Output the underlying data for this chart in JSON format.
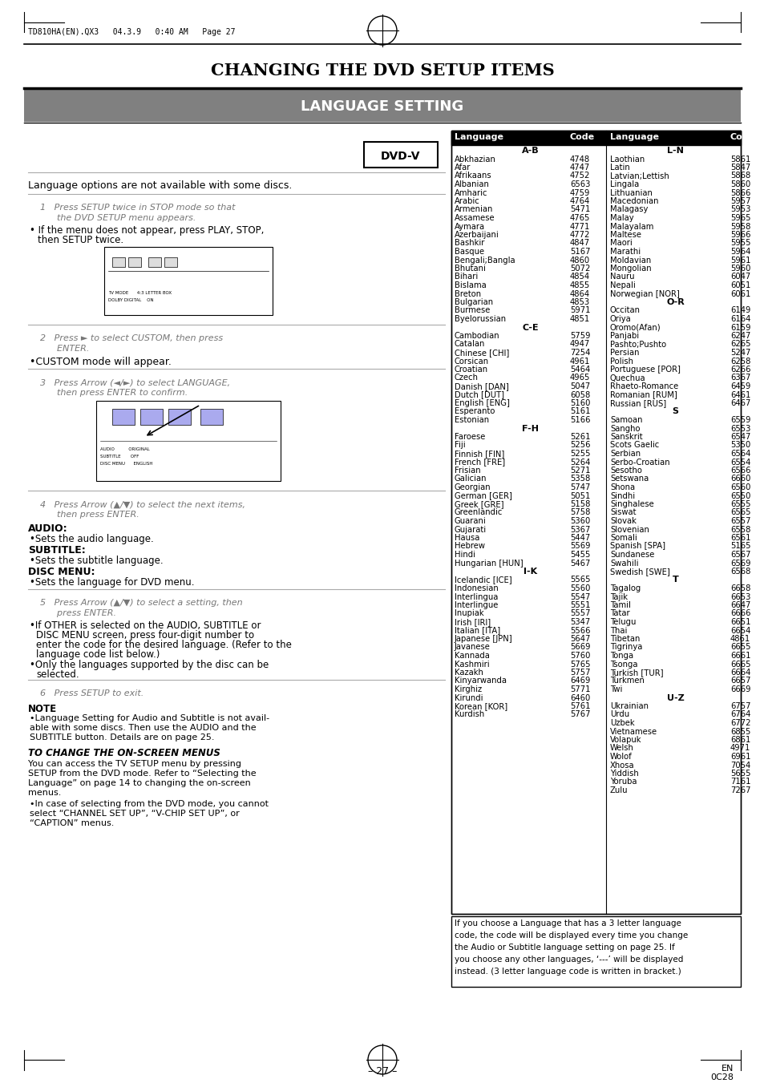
{
  "page_header": "TD810HA(EN).QX3   04.3.9   0:40 AM   Page 27",
  "main_title": "CHANGING THE DVD SETUP ITEMS",
  "section_title": "LANGUAGE SETTING",
  "dvd_v_label": "DVD-V",
  "intro_text": "Language options are not available with some discs.",
  "bg_color": "#ffffff",
  "col1_section_ab": "A-B",
  "col1_languages_ab": [
    [
      "Abkhazian",
      "4748"
    ],
    [
      "Afar",
      "4747"
    ],
    [
      "Afrikaans",
      "4752"
    ],
    [
      "Albanian",
      "6563"
    ],
    [
      "Amharic",
      "4759"
    ],
    [
      "Arabic",
      "4764"
    ],
    [
      "Armenian",
      "5471"
    ],
    [
      "Assamese",
      "4765"
    ],
    [
      "Aymara",
      "4771"
    ],
    [
      "Azerbaijani",
      "4772"
    ],
    [
      "Bashkir",
      "4847"
    ],
    [
      "Basque",
      "5167"
    ],
    [
      "Bengali;Bangla",
      "4860"
    ],
    [
      "Bhutani",
      "5072"
    ],
    [
      "Bihari",
      "4854"
    ],
    [
      "Bislama",
      "4855"
    ],
    [
      "Breton",
      "4864"
    ],
    [
      "Bulgarian",
      "4853"
    ],
    [
      "Burmese",
      "5971"
    ],
    [
      "Byelorussian",
      "4851"
    ]
  ],
  "col1_section_ce": "C-E",
  "col1_languages_ce": [
    [
      "Cambodian",
      "5759"
    ],
    [
      "Catalan",
      "4947"
    ],
    [
      "Chinese [CHI]",
      "7254"
    ],
    [
      "Corsican",
      "4961"
    ],
    [
      "Croatian",
      "5464"
    ],
    [
      "Czech",
      "4965"
    ],
    [
      "Danish [DAN]",
      "5047"
    ],
    [
      "Dutch [DUT]",
      "6058"
    ],
    [
      "English [ENG]",
      "5160"
    ],
    [
      "Esperanto",
      "5161"
    ],
    [
      "Estonian",
      "5166"
    ]
  ],
  "col1_section_fh": "F-H",
  "col1_languages_fh": [
    [
      "Faroese",
      "5261"
    ],
    [
      "Fiji",
      "5256"
    ],
    [
      "Finnish [FIN]",
      "5255"
    ],
    [
      "French [FRE]",
      "5264"
    ],
    [
      "Frisian",
      "5271"
    ],
    [
      "Galician",
      "5358"
    ],
    [
      "Georgian",
      "5747"
    ],
    [
      "German [GER]",
      "5051"
    ],
    [
      "Greek [GRE]",
      "5158"
    ],
    [
      "Greenlandic",
      "5758"
    ],
    [
      "Guarani",
      "5360"
    ],
    [
      "Gujarati",
      "5367"
    ],
    [
      "Hausa",
      "5447"
    ],
    [
      "Hebrew",
      "5569"
    ],
    [
      "Hindi",
      "5455"
    ],
    [
      "Hungarian [HUN]",
      "5467"
    ]
  ],
  "col1_section_ik": "I-K",
  "col1_languages_ik": [
    [
      "Icelandic [ICE]",
      "5565"
    ],
    [
      "Indonesian",
      "5560"
    ],
    [
      "Interlingua",
      "5547"
    ],
    [
      "Interlingue",
      "5551"
    ],
    [
      "Inupiak",
      "5557"
    ],
    [
      "Irish [IRI]",
      "5347"
    ],
    [
      "Italian [ITA]",
      "5566"
    ],
    [
      "Japanese [JPN]",
      "5647"
    ],
    [
      "Javanese",
      "5669"
    ],
    [
      "Kannada",
      "5760"
    ],
    [
      "Kashmiri",
      "5765"
    ],
    [
      "Kazakh",
      "5757"
    ],
    [
      "Kinyarwanda",
      "6469"
    ],
    [
      "Kirghiz",
      "5771"
    ],
    [
      "Kirundi",
      "6460"
    ],
    [
      "Korean [KOR]",
      "5761"
    ],
    [
      "Kurdish",
      "5767"
    ]
  ],
  "col2_section_ln": "L-N",
  "col2_languages_ln": [
    [
      "Laothian",
      "5861"
    ],
    [
      "Latin",
      "5847"
    ],
    [
      "Latvian;Lettish",
      "5868"
    ],
    [
      "Lingala",
      "5860"
    ],
    [
      "Lithuanian",
      "5866"
    ],
    [
      "Macedonian",
      "5957"
    ],
    [
      "Malagasy",
      "5953"
    ],
    [
      "Malay",
      "5965"
    ],
    [
      "Malayalam",
      "5958"
    ],
    [
      "Maltese",
      "5966"
    ],
    [
      "Maori",
      "5955"
    ],
    [
      "Marathi",
      "5964"
    ],
    [
      "Moldavian",
      "5961"
    ],
    [
      "Mongolian",
      "5960"
    ],
    [
      "Nauru",
      "6047"
    ],
    [
      "Nepali",
      "6051"
    ],
    [
      "Norwegian [NOR]",
      "6061"
    ]
  ],
  "col2_section_or": "O-R",
  "col2_languages_or": [
    [
      "Occitan",
      "6149"
    ],
    [
      "Oriya",
      "6164"
    ],
    [
      "Oromo(Afan)",
      "6159"
    ],
    [
      "Panjabi",
      "6247"
    ],
    [
      "Pashto;Pushto",
      "6265"
    ],
    [
      "Persian",
      "5247"
    ],
    [
      "Polish",
      "6258"
    ],
    [
      "Portuguese [POR]",
      "6266"
    ],
    [
      "Quechua",
      "6367"
    ],
    [
      "Rhaeto-Romance",
      "6459"
    ],
    [
      "Romanian [RUM]",
      "6461"
    ],
    [
      "Russian [RUS]",
      "6467"
    ]
  ],
  "col2_section_s": "S",
  "col2_languages_s": [
    [
      "Samoan",
      "6559"
    ],
    [
      "Sangho",
      "6553"
    ],
    [
      "Sanskrit",
      "6547"
    ],
    [
      "Scots Gaelic",
      "5350"
    ],
    [
      "Serbian",
      "6564"
    ],
    [
      "Serbo-Croatian",
      "6554"
    ],
    [
      "Sesotho",
      "6566"
    ],
    [
      "Setswana",
      "6660"
    ],
    [
      "Shona",
      "6560"
    ],
    [
      "Sindhi",
      "6550"
    ],
    [
      "Singhalese",
      "6555"
    ],
    [
      "Siswat",
      "6565"
    ],
    [
      "Slovak",
      "6557"
    ],
    [
      "Slovenian",
      "6558"
    ],
    [
      "Somali",
      "6561"
    ],
    [
      "Spanish [SPA]",
      "5165"
    ],
    [
      "Sundanese",
      "6567"
    ],
    [
      "Swahili",
      "6569"
    ],
    [
      "Swedish [SWE]",
      "6568"
    ]
  ],
  "col2_section_t": "T",
  "col2_languages_t": [
    [
      "Tagalog",
      "6658"
    ],
    [
      "Tajik",
      "6653"
    ],
    [
      "Tamil",
      "6647"
    ],
    [
      "Tatar",
      "6666"
    ],
    [
      "Telugu",
      "6651"
    ],
    [
      "Thai",
      "6654"
    ],
    [
      "Tibetan",
      "4861"
    ],
    [
      "Tigrinya",
      "6655"
    ],
    [
      "Tonga",
      "6661"
    ],
    [
      "Tsonga",
      "6665"
    ],
    [
      "Turkish [TUR]",
      "6664"
    ],
    [
      "Turkmen",
      "6657"
    ],
    [
      "Twi",
      "6669"
    ]
  ],
  "col2_section_uz": "U-Z",
  "col2_languages_uz": [
    [
      "Ukrainian",
      "6757"
    ],
    [
      "Urdu",
      "6764"
    ],
    [
      "Uzbek",
      "6772"
    ],
    [
      "Vietnamese",
      "6855"
    ],
    [
      "Volapuk",
      "6861"
    ],
    [
      "Welsh",
      "4971"
    ],
    [
      "Wolof",
      "6961"
    ],
    [
      "Xhosa",
      "7054"
    ],
    [
      "Yiddish",
      "5655"
    ],
    [
      "Yoruba",
      "7161"
    ],
    [
      "Zulu",
      "7267"
    ]
  ],
  "footer_note": "If you choose a Language that has a 3 letter language\ncode, the code will be displayed every time you change\nthe Audio or Subtitle language setting on page 25. If\nyou choose any other languages, ‘---’ will be displayed\ninstead. (3 letter language code is written in bracket.)",
  "page_num": "– 27 –",
  "page_code_line1": "EN",
  "page_code_line2": "0C28"
}
